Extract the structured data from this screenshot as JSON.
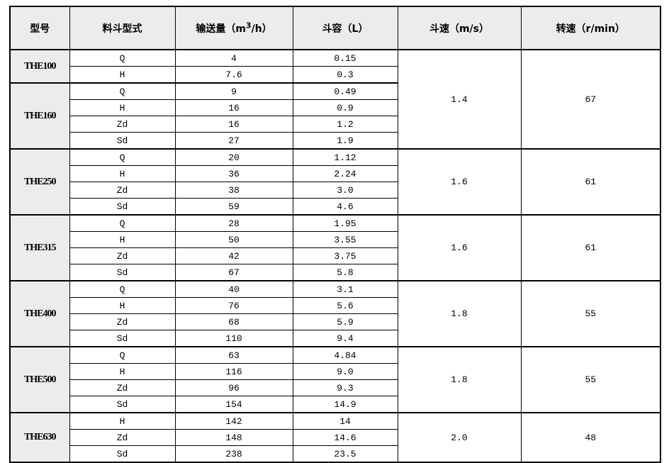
{
  "colors": {
    "border": "#000000",
    "header_bg": "#ececec",
    "model_col_bg": "#ececec",
    "text": "#000000",
    "page_bg": "#ffffff"
  },
  "table": {
    "header": {
      "col_model": "型号",
      "col_bucket_type": "料斗型式",
      "col_capacity": {
        "prefix": "输送量（m",
        "sup": "3",
        "suffix": "/h）"
      },
      "col_bucket_volume": "斗容（L）",
      "col_bucket_speed": "斗速（m/s）",
      "col_rotation_speed": "转速（r/min）"
    },
    "groups": [
      {
        "model": "THE100",
        "rows": [
          {
            "type": "Q",
            "capacity": "4",
            "volume": "0.15"
          },
          {
            "type": "H",
            "capacity": "7.6",
            "volume": "0.3"
          }
        ],
        "speed": {
          "value": "1.4",
          "rpm": "67",
          "rowspan": 6
        }
      },
      {
        "model": "THE160",
        "rows": [
          {
            "type": "Q",
            "capacity": "9",
            "volume": "0.49"
          },
          {
            "type": "H",
            "capacity": "16",
            "volume": "0.9"
          },
          {
            "type": "Zd",
            "capacity": "16",
            "volume": "1.2"
          },
          {
            "type": "Sd",
            "capacity": "27",
            "volume": "1.9"
          }
        ],
        "speed": null
      },
      {
        "model": "THE250",
        "rows": [
          {
            "type": "Q",
            "capacity": "20",
            "volume": "1.12"
          },
          {
            "type": "H",
            "capacity": "36",
            "volume": "2.24"
          },
          {
            "type": "Zd",
            "capacity": "38",
            "volume": "3.0"
          },
          {
            "type": "Sd",
            "capacity": "59",
            "volume": "4.6"
          }
        ],
        "speed": {
          "value": "1.6",
          "rpm": "61",
          "rowspan": 4
        }
      },
      {
        "model": "THE315",
        "rows": [
          {
            "type": "Q",
            "capacity": "28",
            "volume": "1.95"
          },
          {
            "type": "H",
            "capacity": "50",
            "volume": "3.55"
          },
          {
            "type": "Zd",
            "capacity": "42",
            "volume": "3.75"
          },
          {
            "type": "Sd",
            "capacity": "67",
            "volume": "5.8"
          }
        ],
        "speed": {
          "value": "1.6",
          "rpm": "61",
          "rowspan": 4
        }
      },
      {
        "model": "THE400",
        "rows": [
          {
            "type": "Q",
            "capacity": "40",
            "volume": "3.1"
          },
          {
            "type": "H",
            "capacity": "76",
            "volume": "5.6"
          },
          {
            "type": "Zd",
            "capacity": "68",
            "volume": "5.9"
          },
          {
            "type": "Sd",
            "capacity": "110",
            "volume": "9.4"
          }
        ],
        "speed": {
          "value": "1.8",
          "rpm": "55",
          "rowspan": 4
        }
      },
      {
        "model": "THE500",
        "rows": [
          {
            "type": "Q",
            "capacity": "63",
            "volume": "4.84"
          },
          {
            "type": "H",
            "capacity": "116",
            "volume": "9.0"
          },
          {
            "type": "Zd",
            "capacity": "96",
            "volume": "9.3"
          },
          {
            "type": "Sd",
            "capacity": "154",
            "volume": "14.9"
          }
        ],
        "speed": {
          "value": "1.8",
          "rpm": "55",
          "rowspan": 4
        }
      },
      {
        "model": "THE630",
        "rows": [
          {
            "type": "H",
            "capacity": "142",
            "volume": "14"
          },
          {
            "type": "Zd",
            "capacity": "148",
            "volume": "14.6"
          },
          {
            "type": "Sd",
            "capacity": "238",
            "volume": "23.5"
          }
        ],
        "speed": {
          "value": "2.0",
          "rpm": "48",
          "rowspan": 3
        }
      }
    ]
  }
}
